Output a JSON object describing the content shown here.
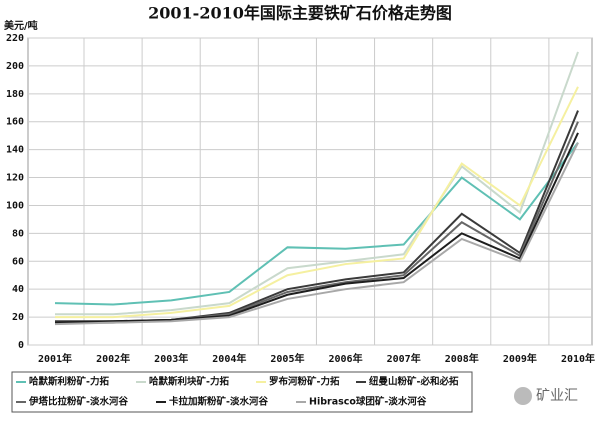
{
  "chart_data": {
    "type": "line",
    "title": "2001-2010年国际主要铁矿石价格走势图",
    "y_label": "美元/吨",
    "categories": [
      "2001年",
      "2002年",
      "2003年",
      "2004年",
      "2005年",
      "2006年",
      "2007年",
      "2008年",
      "2009年",
      "2010年"
    ],
    "series": [
      {
        "name": "哈默斯利粉矿-力拓",
        "color": "#5fc0b4",
        "values": [
          30,
          29,
          32,
          38,
          70,
          69,
          72,
          120,
          90,
          145
        ]
      },
      {
        "name": "哈默斯利块矿-力拓",
        "color": "#c9d9cc",
        "values": [
          22,
          22,
          25,
          30,
          55,
          60,
          65,
          128,
          95,
          210
        ]
      },
      {
        "name": "罗布河粉矿-力拓",
        "color": "#f5f0a0",
        "values": [
          20,
          20,
          23,
          28,
          50,
          58,
          62,
          130,
          100,
          185
        ]
      },
      {
        "name": "纽曼山粉矿-必和必拓",
        "color": "#3a3a3a",
        "values": [
          17,
          17,
          18,
          23,
          40,
          47,
          52,
          94,
          66,
          168
        ]
      },
      {
        "name": "伊塔比拉粉矿-淡水河谷",
        "color": "#666666",
        "values": [
          16,
          16,
          18,
          22,
          38,
          45,
          50,
          88,
          64,
          160
        ]
      },
      {
        "name": "卡拉加斯粉矿-淡水河谷",
        "color": "#1e1e1e",
        "values": [
          16,
          17,
          18,
          21,
          36,
          44,
          48,
          80,
          62,
          152
        ]
      },
      {
        "name": "Hibrasco球团矿-淡水河谷",
        "color": "#a8a8a8",
        "values": [
          15,
          16,
          17,
          20,
          33,
          40,
          45,
          76,
          60,
          145
        ]
      }
    ],
    "ylim": [
      0,
      220
    ],
    "yticks": [
      0,
      20,
      40,
      60,
      80,
      100,
      120,
      140,
      160,
      180,
      200,
      220
    ],
    "grid": true,
    "legend": "bottom",
    "watermark": "矿业汇"
  }
}
